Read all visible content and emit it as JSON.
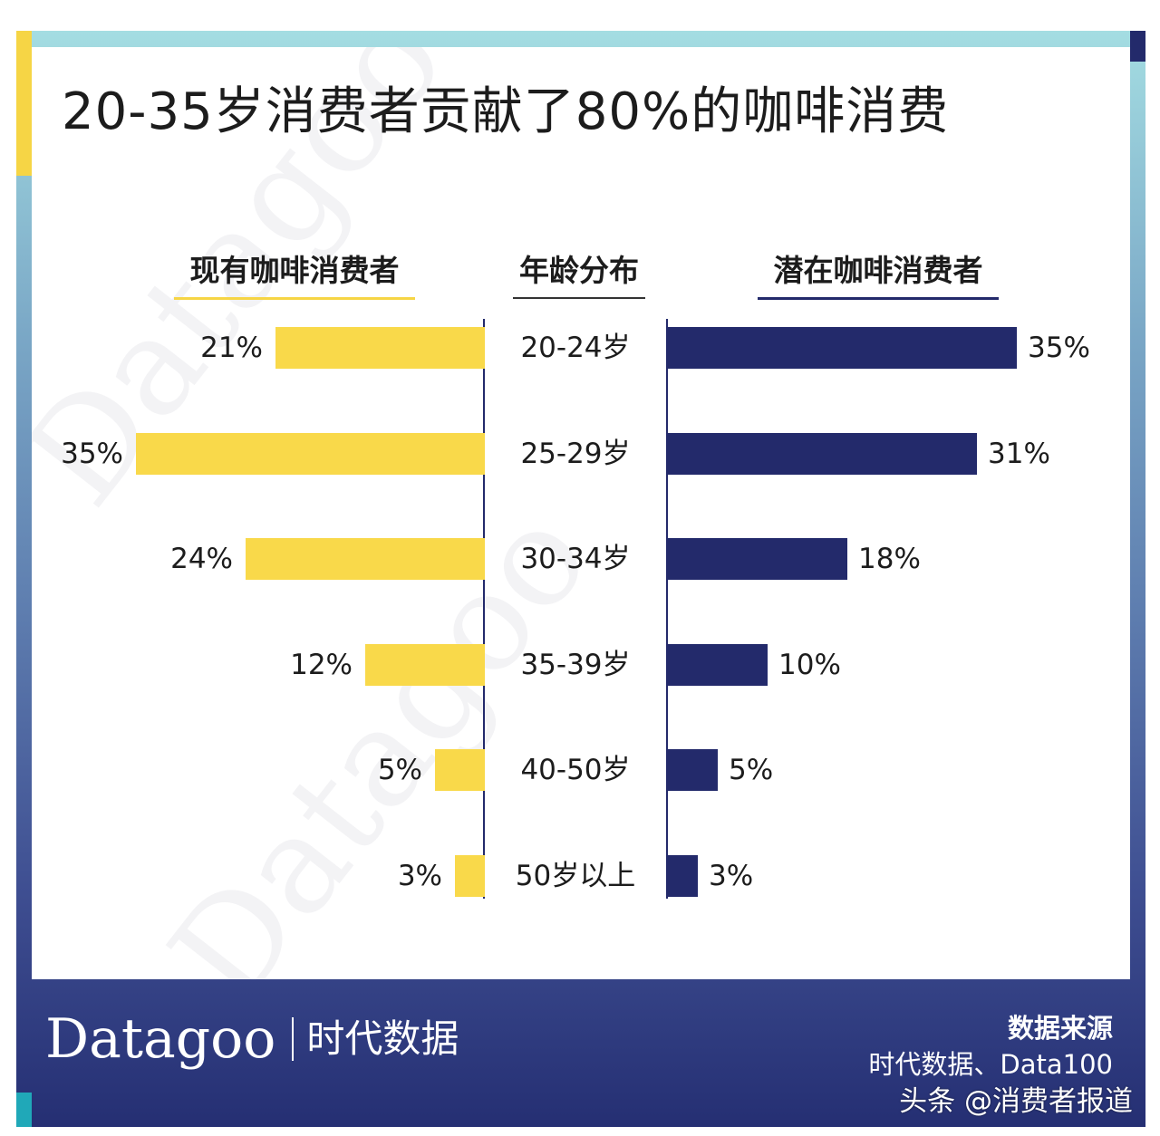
{
  "title": "20-35岁消费者贡献了80%的咖啡消费",
  "chart_data": {
    "type": "bar",
    "orientation": "horizontal-butterfly",
    "categories": [
      "20-24岁",
      "25-29岁",
      "30-34岁",
      "35-39岁",
      "40-50岁",
      "50岁以上"
    ],
    "series": [
      {
        "name": "现有咖啡消费者",
        "values": [
          21,
          35,
          24,
          12,
          5,
          3
        ],
        "labels": [
          "21%",
          "35%",
          "24%",
          "12%",
          "5%",
          "3%"
        ],
        "color": "#f9d94a"
      },
      {
        "name": "潜在咖啡消费者",
        "values": [
          35,
          31,
          18,
          10,
          5,
          3
        ],
        "labels": [
          "35%",
          "31%",
          "18%",
          "10%",
          "5%",
          "3%"
        ],
        "color": "#232a6b"
      }
    ],
    "center_label": "年龄分布",
    "unit": "%",
    "xlim": [
      0,
      35
    ],
    "grid": false
  },
  "footer": {
    "logo_en": "Datagoo",
    "logo_cn": "时代数据",
    "source_title": "数据来源",
    "source_text": "时代数据、Data100",
    "credit": "头条 @消费者报道"
  },
  "colors": {
    "yellow": "#f9d94a",
    "navy": "#232a6b",
    "teal": "#20a8b8"
  }
}
